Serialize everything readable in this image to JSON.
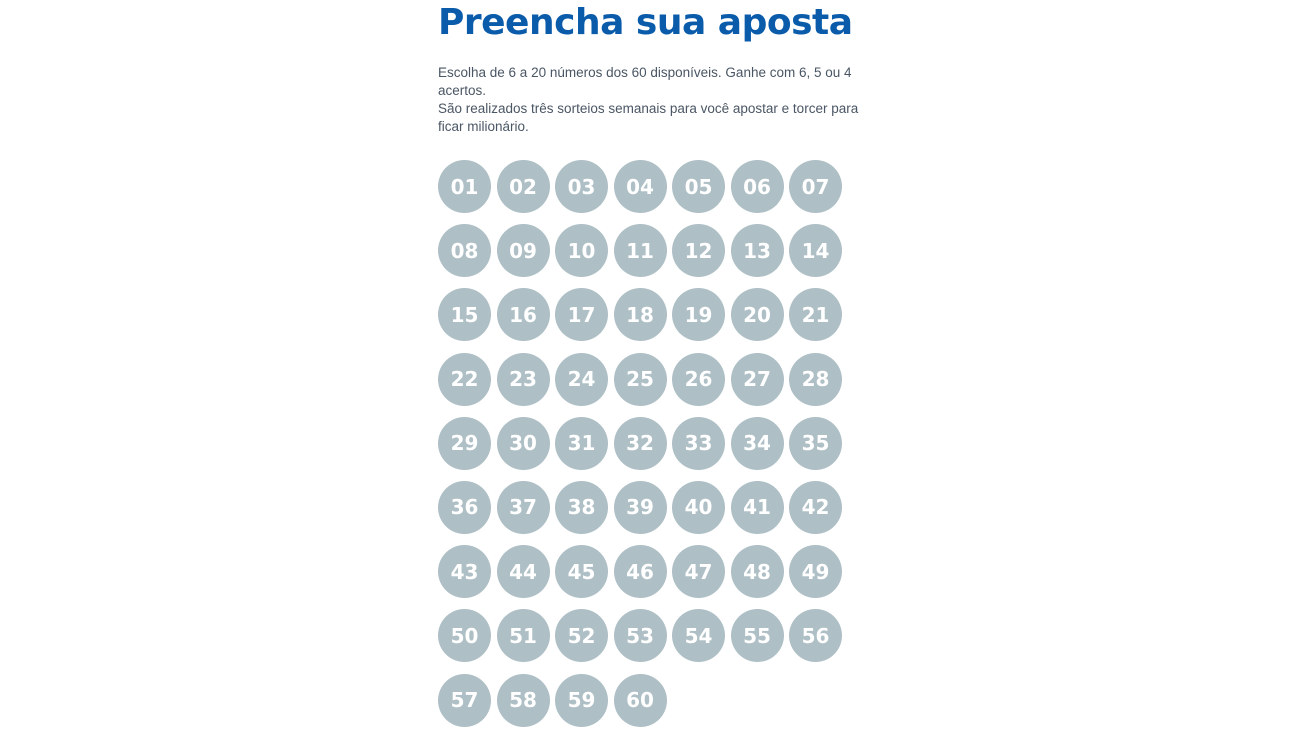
{
  "header": {
    "title": "Preencha sua aposta"
  },
  "description": {
    "line1": "Escolha de 6 a 20 números dos 60 disponíveis. Ganhe com 6, 5 ou 4 acertos.",
    "line2": "São realizados três sorteios semanais para você apostar e torcer para ficar milionário."
  },
  "colors": {
    "title": "#0a5cab",
    "ball_unselected": "#aebfc5",
    "ball_text": "#ffffff",
    "description_text": "#4a5664"
  },
  "numbers": [
    "01",
    "02",
    "03",
    "04",
    "05",
    "06",
    "07",
    "08",
    "09",
    "10",
    "11",
    "12",
    "13",
    "14",
    "15",
    "16",
    "17",
    "18",
    "19",
    "20",
    "21",
    "22",
    "23",
    "24",
    "25",
    "26",
    "27",
    "28",
    "29",
    "30",
    "31",
    "32",
    "33",
    "34",
    "35",
    "36",
    "37",
    "38",
    "39",
    "40",
    "41",
    "42",
    "43",
    "44",
    "45",
    "46",
    "47",
    "48",
    "49",
    "50",
    "51",
    "52",
    "53",
    "54",
    "55",
    "56",
    "57",
    "58",
    "59",
    "60"
  ]
}
